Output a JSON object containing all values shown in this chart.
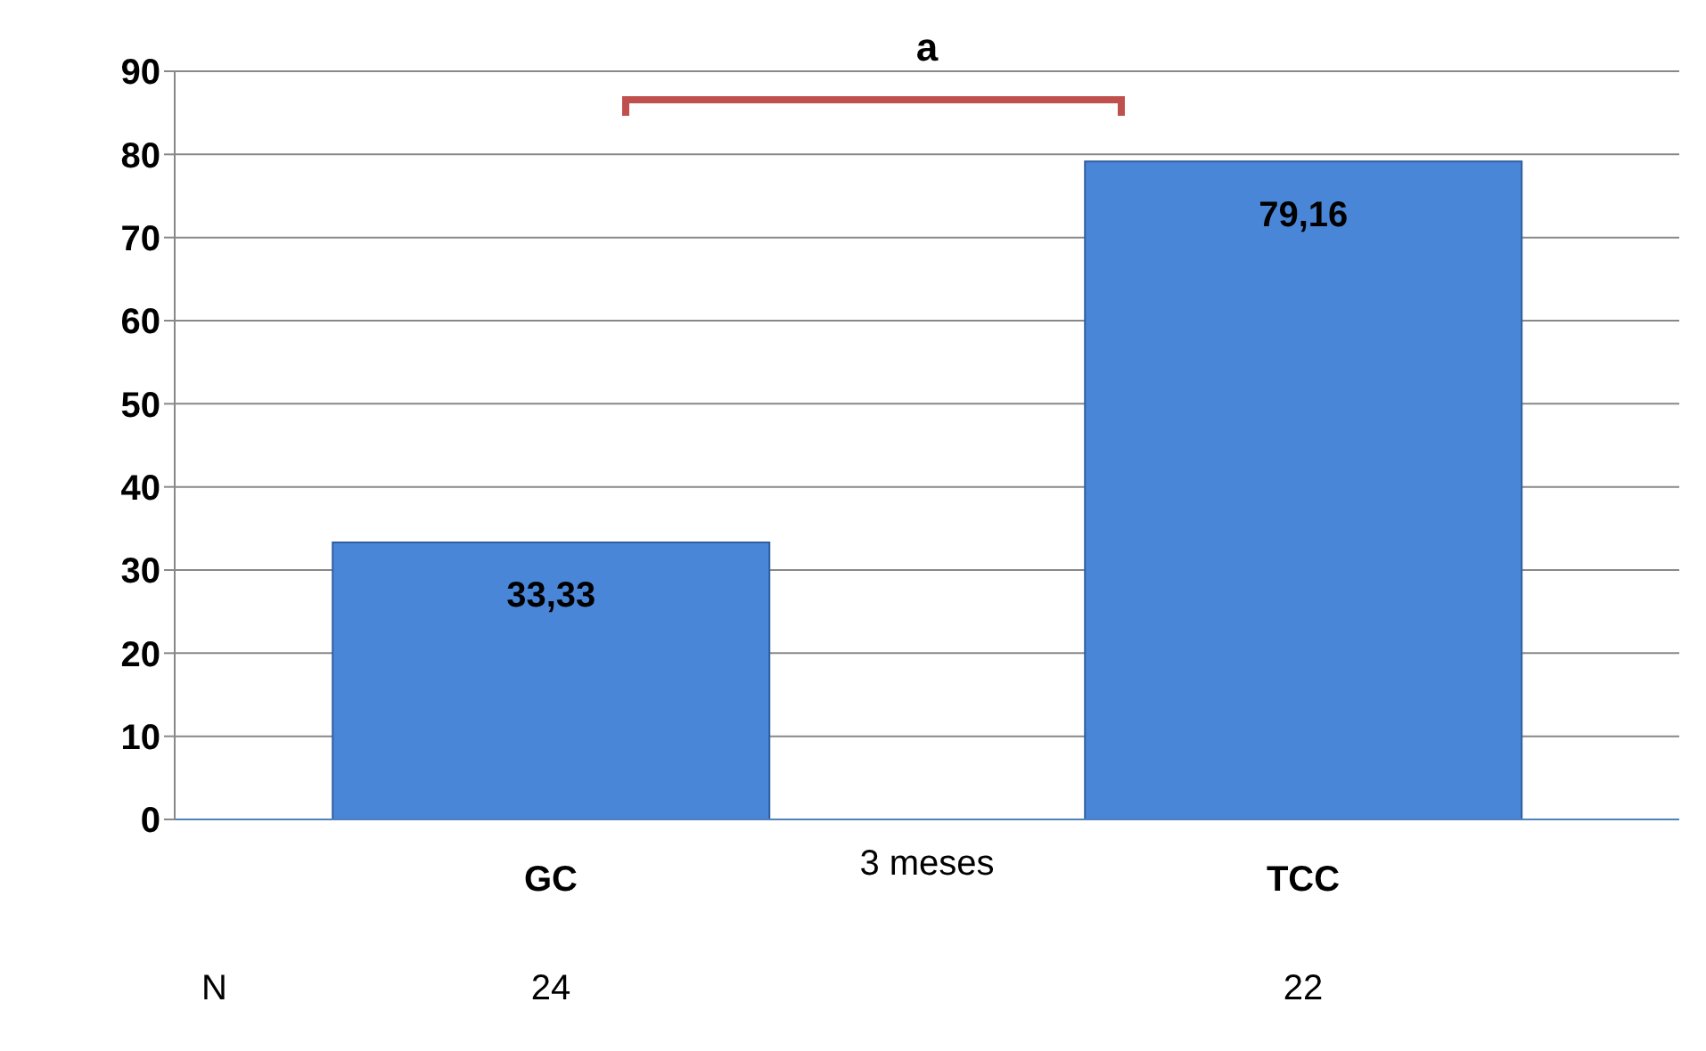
{
  "chart_data": {
    "type": "bar",
    "xlabel": "3 meses",
    "categories": [
      "GC",
      "TCC"
    ],
    "values": [
      33.33,
      79.16
    ],
    "value_labels": [
      "33,33",
      "79,16"
    ],
    "color": "#4a86d8",
    "ylim": [
      0,
      90
    ],
    "yticks": [
      0,
      10,
      20,
      30,
      40,
      50,
      60,
      70,
      80,
      90
    ],
    "grid": "y",
    "annotations": [
      "a",
      "N",
      "24",
      "22"
    ]
  }
}
